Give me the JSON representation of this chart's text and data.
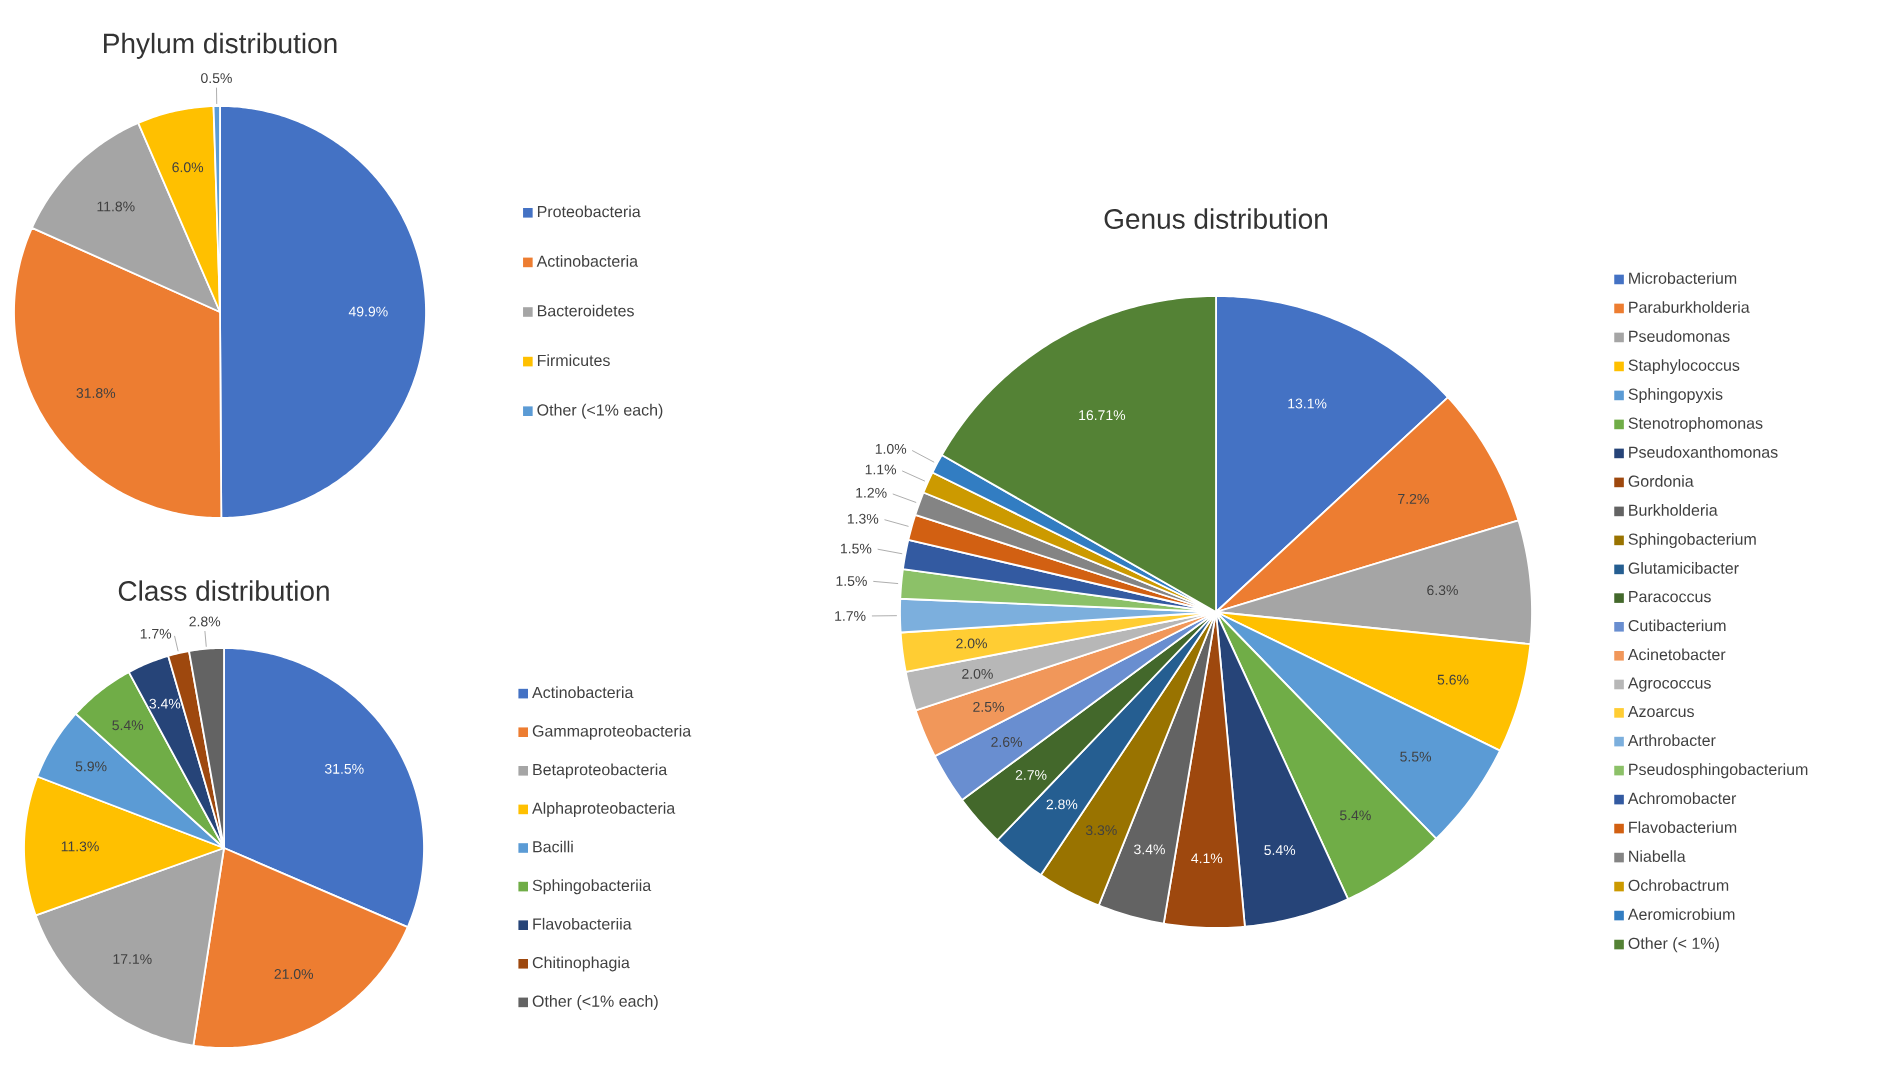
{
  "chart_data": [
    {
      "type": "pie",
      "title": "Phylum distribution",
      "legend": "right",
      "categories": [
        "Proteobacteria",
        "Actinobacteria",
        "Bacteroidetes",
        "Firmicutes",
        "Other (<1% each)"
      ],
      "values": [
        49.9,
        31.8,
        11.8,
        6.0,
        0.5
      ],
      "value_labels": [
        "49.9%",
        "31.8%",
        "11.8%",
        "6.0%",
        "0.5%"
      ],
      "colors": [
        "#4472c4",
        "#ed7d31",
        "#a5a5a5",
        "#ffc000",
        "#5b9bd5"
      ]
    },
    {
      "type": "pie",
      "title": "Class distribution",
      "legend": "right",
      "categories": [
        "Actinobacteria",
        "Gammaproteobacteria",
        "Betaproteobacteria",
        "Alphaproteobacteria",
        "Bacilli",
        "Sphingobacteriia",
        "Flavobacteriia",
        "Chitinophagia",
        "Other (<1% each)"
      ],
      "values": [
        31.5,
        21.0,
        17.1,
        11.3,
        5.9,
        5.4,
        3.4,
        1.7,
        2.8
      ],
      "value_labels": [
        "31.5%",
        "21.0%",
        "17.1%",
        "11.3%",
        "5.9%",
        "5.4%",
        "3.4%",
        "1.7%",
        "2.8%"
      ],
      "colors": [
        "#4472c4",
        "#ed7d31",
        "#a5a5a5",
        "#ffc000",
        "#5b9bd5",
        "#70ad47",
        "#264478",
        "#9e480e",
        "#636363"
      ]
    },
    {
      "type": "pie",
      "title": "Genus distribution",
      "legend": "right",
      "categories": [
        "Microbacterium",
        "Paraburkholderia",
        "Pseudomonas",
        "Staphylococcus",
        "Sphingopyxis",
        "Stenotrophomonas",
        "Pseudoxanthomonas",
        "Gordonia",
        "Burkholderia",
        "Sphingobacterium",
        "Glutamicibacter",
        "Paracoccus",
        "Cutibacterium",
        "Acinetobacter",
        "Agrococcus",
        "Azoarcus",
        "Arthrobacter",
        "Pseudosphingobacterium",
        "Achromobacter",
        "Flavobacterium",
        "Niabella",
        "Ochrobactrum",
        "Aeromicrobium",
        "Other (< 1%)"
      ],
      "values": [
        13.1,
        7.2,
        6.3,
        5.6,
        5.5,
        5.4,
        5.4,
        4.1,
        3.4,
        3.3,
        2.8,
        2.7,
        2.6,
        2.5,
        2.0,
        2.0,
        1.7,
        1.5,
        1.5,
        1.3,
        1.2,
        1.1,
        1.0,
        16.71
      ],
      "value_labels": [
        "13.1%",
        "7.2%",
        "6.3%",
        "5.6%",
        "5.5%",
        "5.4%",
        "5.4%",
        "4.1%",
        "3.4%",
        "3.3%",
        "2.8%",
        "2.7%",
        "2.6%",
        "2.5%",
        "2.0%",
        "2.0%",
        "1.7%",
        "1.5%",
        "1.5%",
        "1.3%",
        "1.2%",
        "1.1%",
        "1.0%",
        "16.71%"
      ],
      "colors": [
        "#4472c4",
        "#ed7d31",
        "#a5a5a5",
        "#ffc000",
        "#5b9bd5",
        "#70ad47",
        "#264478",
        "#9e480e",
        "#636363",
        "#997300",
        "#255e91",
        "#43682b",
        "#698ed0",
        "#f1975a",
        "#b7b7b7",
        "#ffcd33",
        "#7cafdd",
        "#8cc168",
        "#335aa1",
        "#d26012",
        "#848484",
        "#cc9a00",
        "#327dc2",
        "#548235"
      ]
    }
  ]
}
